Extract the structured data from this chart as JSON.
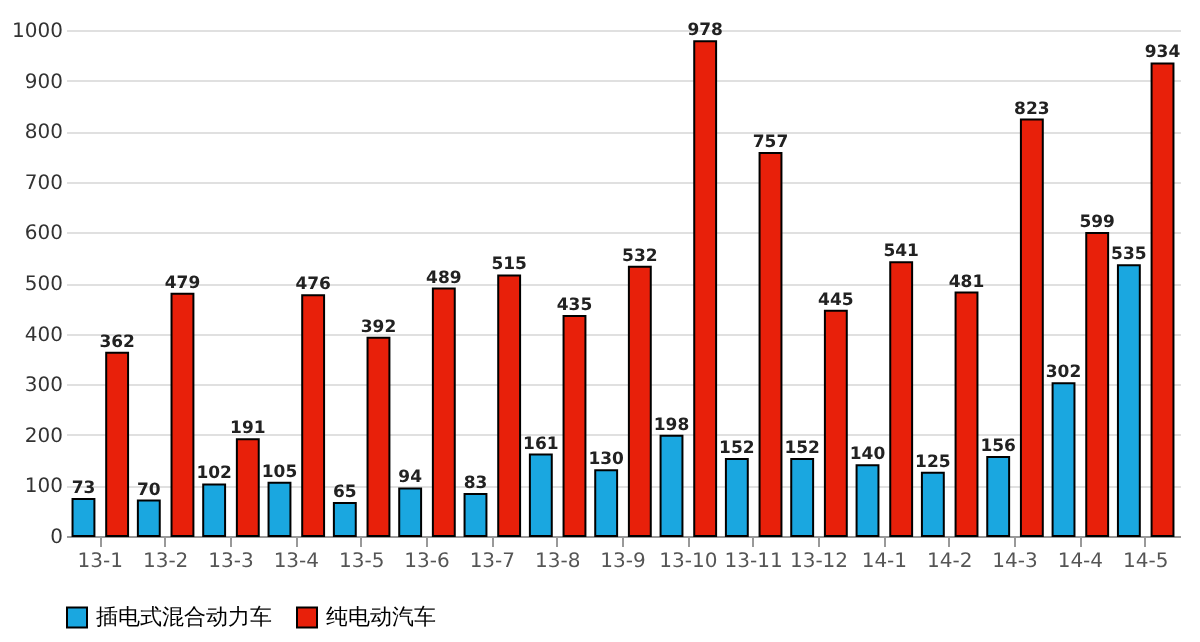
{
  "chart_data": {
    "type": "bar",
    "categories": [
      "13-1",
      "13-2",
      "13-3",
      "13-4",
      "13-5",
      "13-6",
      "13-7",
      "13-8",
      "13-9",
      "13-10",
      "13-11",
      "13-12",
      "14-1",
      "14-2",
      "14-3",
      "14-4",
      "14-5"
    ],
    "series": [
      {
        "name": "插电式混合动力车",
        "color": "#1aa7e0",
        "values": [
          73,
          70,
          102,
          105,
          65,
          94,
          83,
          161,
          130,
          198,
          152,
          152,
          140,
          125,
          156,
          302,
          535
        ]
      },
      {
        "name": "纯电动汽车",
        "color": "#e8200a",
        "values": [
          362,
          479,
          191,
          476,
          392,
          489,
          515,
          435,
          532,
          978,
          757,
          445,
          541,
          481,
          823,
          599,
          934
        ]
      }
    ],
    "ylim": [
      0,
      1000
    ],
    "yticks": [
      0,
      100,
      200,
      300,
      400,
      500,
      600,
      700,
      800,
      900,
      1000
    ],
    "grid": "y",
    "legend": "bottom",
    "data_labels": true
  }
}
